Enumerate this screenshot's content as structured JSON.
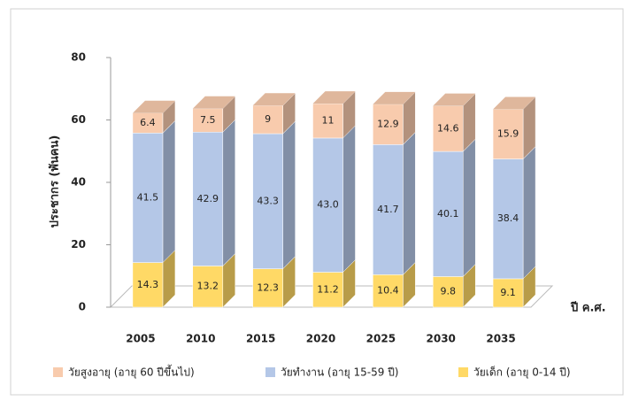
{
  "chart_data": {
    "type": "bar3d-stacked",
    "y_label": "ประชากร (พันคน)",
    "x_label": "ปี ค.ศ.",
    "categories": [
      "2005",
      "2010",
      "2015",
      "2020",
      "2025",
      "2030",
      "2035"
    ],
    "series": [
      {
        "name": "วัยสูงอายุ (อายุ 60 ปีขึ้นไป)",
        "color": "#f8cbad",
        "values": [
          6.4,
          7.5,
          9,
          11,
          12.9,
          14.6,
          15.9
        ]
      },
      {
        "name": "วัยทำงาน (อายุ 15-59 ปี)",
        "color": "#b4c7e7",
        "values": [
          41.5,
          42.9,
          43.3,
          43.0,
          41.7,
          40.1,
          38.4
        ],
        "value_labels": [
          "41.5",
          "42.9",
          "43.3",
          "43.0",
          "41.7",
          "40.1",
          "38.4"
        ]
      },
      {
        "name": "วัยเด็ก (อายุ 0-14 ปี)",
        "color": "#ffd966",
        "values": [
          14.3,
          13.2,
          12.3,
          11.2,
          10.4,
          9.8,
          9.1
        ]
      }
    ],
    "ylim": [
      0,
      80
    ],
    "yticks": [
      0,
      20,
      40,
      60,
      80
    ],
    "grid": false
  }
}
